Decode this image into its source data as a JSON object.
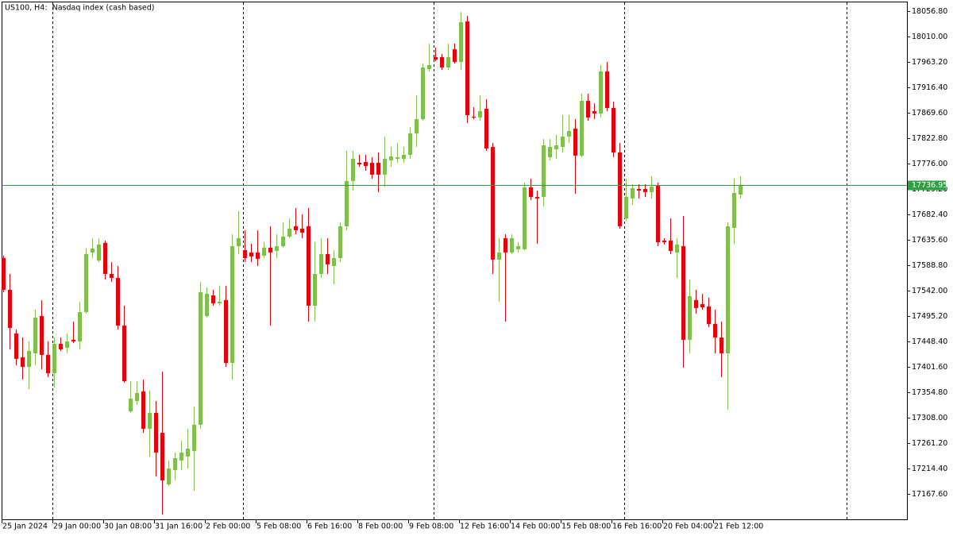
{
  "chart_data": {
    "type": "candlestick",
    "title": "US100, H4:  Nasdaq index (cash based)",
    "categories": [
      "25 Jan 2024",
      null,
      null,
      null,
      null,
      null,
      null,
      null,
      "29 Jan 00:00",
      null,
      null,
      null,
      null,
      null,
      null,
      null,
      "30 Jan 08:00",
      null,
      null,
      null,
      null,
      null,
      null,
      null,
      "31 Jan 16:00",
      null,
      null,
      null,
      null,
      null,
      null,
      null,
      "2 Feb 00:00",
      null,
      null,
      null,
      null,
      null,
      null,
      null,
      "5 Feb 08:00",
      null,
      null,
      null,
      null,
      null,
      null,
      null,
      "6 Feb 16:00",
      null,
      null,
      null,
      null,
      null,
      null,
      null,
      "8 Feb 00:00",
      null,
      null,
      null,
      null,
      null,
      null,
      null,
      "9 Feb 08:00",
      null,
      null,
      null,
      null,
      null,
      null,
      null,
      "12 Feb 16:00",
      null,
      null,
      null,
      null,
      null,
      null,
      null,
      "14 Feb 00:00",
      null,
      null,
      null,
      null,
      null,
      null,
      null,
      "15 Feb 08:00",
      null,
      null,
      null,
      null,
      null,
      null,
      null,
      "16 Feb 16:00",
      null,
      null,
      null,
      null,
      null,
      null,
      null,
      "20 Feb 04:00",
      null,
      null,
      null,
      null,
      null,
      null,
      null,
      "21 Feb 12:00",
      null,
      null,
      null,
      null
    ],
    "open": [
      17602.0,
      17543.5,
      17463.1,
      17419.2,
      17401.6,
      17426.5,
      17495.2,
      17423.6,
      17389.9,
      17444.0,
      17436.7,
      17451.4,
      17448.4,
      17502.5,
      17612.2,
      17597.6,
      17629.8,
      17572.7,
      17565.4,
      17477.7,
      17319.7,
      17338.7,
      17356.3,
      17287.6,
      17316.8,
      17280.2,
      17185.2,
      17211.5,
      17229.1,
      17236.4,
      17246.6,
      17294.9,
      17495.2,
      17533.3,
      17518.6,
      17524.5,
      17408.9,
      17623.9,
      17616.6,
      17612.2,
      17612.2,
      17606.4,
      17621.0,
      17615.2,
      17623.9,
      17641.5,
      17660.5,
      17656.1,
      17660.5,
      17514.2,
      17572.7,
      17609.3,
      17587.4,
      17602.0,
      17660.5,
      17743.9,
      17777.5,
      17779.0,
      17777.5,
      17777.5,
      17755.6,
      17781.9,
      17784.8,
      17784.8,
      17792.1,
      17831.6,
      17857.9,
      17950.1,
      17972.0,
      17972.0,
      17953.0,
      17986.6,
      17963.2,
      18037.8,
      17862.3,
      17860.9,
      17876.9,
      17806.7,
      17599.1,
      17638.6,
      17612.2,
      17618.1,
      17618.1,
      17732.2,
      17714.6,
      17714.6,
      17787.7,
      17802.4,
      17806.7,
      17825.8,
      17840.4,
      17790.7,
      17891.6,
      17872.6,
      17868.2,
      17945.7,
      17878.4,
      17796.5,
      17675.1,
      17711.7,
      17729.2,
      17729.2,
      17723.4,
      17736.5,
      17634.2,
      17634.2,
      17612.2,
      17623.9,
      17451.4,
      17524.5,
      17517.2,
      17512.8,
      17480.6,
      17455.7,
      17426.5,
      17657.6,
      17719.0
    ],
    "high": [
      17606.4,
      17572.7,
      17470.4,
      17455.7,
      17448.4,
      17506.9,
      17524.5,
      17448.4,
      17455.7,
      17455.7,
      17463.1,
      17485.0,
      17521.6,
      17619.5,
      17638.6,
      17638.6,
      17634.2,
      17594.7,
      17587.4,
      17514.2,
      17375.3,
      17375.3,
      17378.2,
      17357.8,
      17338.7,
      17392.9,
      17229.1,
      17243.7,
      17265.6,
      17287.6,
      17328.5,
      17558.1,
      17547.9,
      17543.5,
      17550.8,
      17550.8,
      17645.9,
      17688.3,
      17653.2,
      17628.3,
      17653.2,
      17631.2,
      17660.5,
      17645.9,
      17667.8,
      17675.1,
      17694.1,
      17682.4,
      17694.1,
      17631.2,
      17638.6,
      17638.6,
      17616.6,
      17667.8,
      17799.4,
      17799.4,
      17792.1,
      17792.1,
      17787.7,
      17796.5,
      17825.8,
      17806.7,
      17814.1,
      17806.7,
      17843.3,
      17901.8,
      17960.3,
      17996.9,
      17989.6,
      17977.9,
      17996.9,
      17996.9,
      18055.4,
      18048.1,
      17879.9,
      17901.8,
      17894.5,
      17814.1,
      17638.6,
      17645.9,
      17645.9,
      17631.2,
      17740.9,
      17748.2,
      17726.3,
      17821.4,
      17821.4,
      17828.7,
      17865.2,
      17865.2,
      17857.9,
      17904.7,
      17904.7,
      17887.2,
      17957.4,
      17963.2,
      17890.1,
      17814.1,
      17748.2,
      17738.0,
      17738.0,
      17738.0,
      17752.6,
      17740.9,
      17638.6,
      17675.1,
      17638.6,
      17679.5,
      17562.5,
      17543.5,
      17536.2,
      17528.9,
      17506.9,
      17485.0,
      17667.8,
      17748.2,
      17752.6
    ],
    "low": [
      17539.1,
      17433.8,
      17404.6,
      17378.2,
      17360.7,
      17404.6,
      17397.2,
      17382.6,
      17363.6,
      17430.9,
      17426.5,
      17445.5,
      17433.8,
      17499.6,
      17602.0,
      17594.7,
      17562.5,
      17558.1,
      17470.4,
      17372.4,
      17316.8,
      17331.4,
      17280.2,
      17236.4,
      17199.8,
      17129.6,
      17182.3,
      17192.5,
      17211.5,
      17214.4,
      17173.5,
      17287.6,
      17492.3,
      17514.2,
      17514.2,
      17401.6,
      17378.2,
      17609.3,
      17594.7,
      17594.7,
      17587.4,
      17602.0,
      17477.7,
      17602.0,
      17621.0,
      17638.6,
      17645.9,
      17638.6,
      17485.0,
      17485.0,
      17565.4,
      17572.7,
      17553.7,
      17594.7,
      17653.2,
      17726.3,
      17770.2,
      17762.9,
      17748.2,
      17723.4,
      17733.6,
      17770.2,
      17777.5,
      17777.5,
      17784.8,
      17806.7,
      17855.0,
      17945.7,
      17964.7,
      17948.6,
      17948.6,
      17960.3,
      17948.6,
      17850.6,
      17857.9,
      17855.0,
      17799.4,
      17572.7,
      17521.6,
      17485.0,
      17609.3,
      17612.2,
      17616.6,
      17708.8,
      17628.3,
      17697.1,
      17781.9,
      17784.8,
      17796.5,
      17814.1,
      17720.5,
      17787.7,
      17855.0,
      17857.9,
      17860.9,
      17872.6,
      17787.7,
      17656.1,
      17670.7,
      17700.0,
      17711.7,
      17714.6,
      17711.7,
      17623.9,
      17626.9,
      17609.3,
      17565.4,
      17400.2,
      17426.5,
      17499.6,
      17506.9,
      17474.8,
      17426.5,
      17382.6,
      17322.7,
      17628.3,
      17711.7
    ],
    "close": [
      17543.5,
      17473.3,
      17416.3,
      17401.6,
      17430.9,
      17492.3,
      17423.6,
      17389.9,
      17444.0,
      17433.8,
      17448.4,
      17448.4,
      17502.5,
      17609.3,
      17619.5,
      17626.9,
      17572.7,
      17565.4,
      17477.7,
      17375.3,
      17343.1,
      17353.4,
      17287.6,
      17316.8,
      17243.7,
      17192.5,
      17214.4,
      17233.4,
      17243.7,
      17251.0,
      17294.9,
      17539.1,
      17536.2,
      17518.6,
      17521.6,
      17408.9,
      17623.9,
      17638.6,
      17602.0,
      17604.9,
      17600.5,
      17621.0,
      17612.2,
      17623.9,
      17641.5,
      17656.1,
      17653.2,
      17648.8,
      17514.2,
      17572.7,
      17609.3,
      17590.3,
      17602.0,
      17660.5,
      17743.9,
      17784.8,
      17774.6,
      17771.6,
      17755.6,
      17755.6,
      17784.8,
      17789.2,
      17787.7,
      17792.1,
      17831.6,
      17857.9,
      17953.0,
      17957.4,
      17967.6,
      17953.0,
      17972.0,
      17963.2,
      18036.4,
      17865.2,
      17860.9,
      17872.6,
      17803.8,
      17599.1,
      17612.2,
      17612.2,
      17638.6,
      17623.9,
      17732.2,
      17714.6,
      17711.7,
      17809.7,
      17806.7,
      17809.7,
      17825.8,
      17836.0,
      17790.7,
      17891.6,
      17860.9,
      17868.2,
      17945.7,
      17878.4,
      17796.5,
      17660.5,
      17714.6,
      17730.7,
      17726.3,
      17723.4,
      17733.6,
      17631.2,
      17631.2,
      17615.2,
      17626.9,
      17451.4,
      17531.8,
      17509.9,
      17511.3,
      17480.6,
      17455.7,
      17426.5,
      17660.5,
      17721.9,
      17736.95
    ],
    "up_color": "#7fbf4d",
    "down_color": "#e8000b",
    "current_price": 17736.95,
    "current_price_color": "#2ea043",
    "ylim": [
      17119.3,
      18070.0
    ],
    "yticks": [
      {
        "value": 18056.8,
        "label": "18056.80"
      },
      {
        "value": 18010.0,
        "label": "18010.00"
      },
      {
        "value": 17963.2,
        "label": "17963.20"
      },
      {
        "value": 17916.4,
        "label": "17916.40"
      },
      {
        "value": 17869.6,
        "label": "17869.60"
      },
      {
        "value": 17822.8,
        "label": "17822.80"
      },
      {
        "value": 17776.0,
        "label": "17776.00"
      },
      {
        "value": 17729.2,
        "label": "17729.20"
      },
      {
        "value": 17682.4,
        "label": "17682.40"
      },
      {
        "value": 17635.6,
        "label": "17635.60"
      },
      {
        "value": 17588.8,
        "label": "17588.80"
      },
      {
        "value": 17542.0,
        "label": "17542.00"
      },
      {
        "value": 17495.2,
        "label": "17495.20"
      },
      {
        "value": 17448.4,
        "label": "17448.40"
      },
      {
        "value": 17401.6,
        "label": "17401.60"
      },
      {
        "value": 17354.8,
        "label": "17354.80"
      },
      {
        "value": 17308.0,
        "label": "17308.00"
      },
      {
        "value": 17261.2,
        "label": "17261.20"
      },
      {
        "value": 17214.4,
        "label": "17214.40"
      },
      {
        "value": 17167.6,
        "label": "17167.60"
      }
    ]
  }
}
